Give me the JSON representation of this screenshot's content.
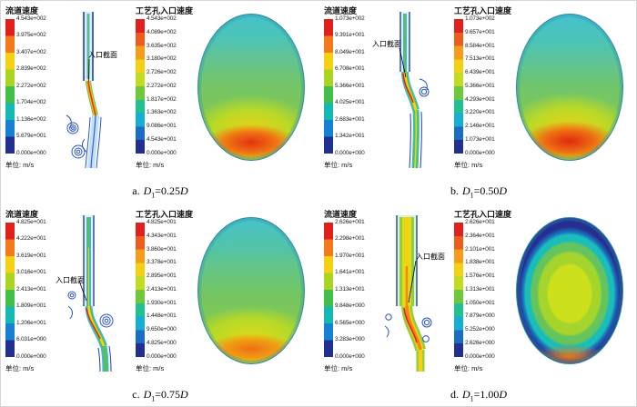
{
  "figure": {
    "annotation_label": "入口截面",
    "unit_label": "单位: m/s",
    "accent_colors": {
      "max_red": "#e11f1c",
      "min_blue": "#232e92",
      "contour_green": "#7ec757",
      "contour_cyan": "#47c2cb"
    }
  },
  "panels": [
    {
      "id": "a",
      "left_legend": {
        "title": "流道速度",
        "unit": "单位: m/s",
        "ticks": [
          "4.543e+002",
          "3.975e+002",
          "3.407e+002",
          "2.839e+002",
          "2.272e+002",
          "1.704e+002",
          "1.136e+002",
          "5.679e+001",
          "0.000e+000"
        ]
      },
      "right_legend": {
        "title": "工艺孔入口速度",
        "unit": "单位: m/s",
        "ticks": [
          "4.543e+002",
          "4.089e+002",
          "3.635e+002",
          "3.180e+002",
          "2.726e+002",
          "2.272e+002",
          "1.817e+002",
          "1.363e+002",
          "9.086e+001",
          "4.543e+001",
          "0.000e+000"
        ]
      },
      "annotation": "入口截面",
      "caption": {
        "index": "a.",
        "symbol": "D",
        "subscript": "1",
        "relation": "=0.25",
        "ref": "D"
      }
    },
    {
      "id": "b",
      "left_legend": {
        "title": "流道速度",
        "unit": "单位: m/s",
        "ticks": [
          "1.073e+002",
          "9.391e+001",
          "8.049e+001",
          "6.708e+001",
          "5.366e+001",
          "4.025e+001",
          "2.683e+001",
          "1.342e+001",
          "0.000e+000"
        ]
      },
      "right_legend": {
        "title": "工艺孔入口速度",
        "unit": "单位: m/s",
        "ticks": [
          "1.073e+002",
          "9.657e+001",
          "8.584e+001",
          "7.513e+001",
          "6.439e+001",
          "5.366e+001",
          "4.293e+001",
          "3.220e+001",
          "2.146e+001",
          "1.073e+001",
          "0.000e+000"
        ]
      },
      "annotation": "入口截面",
      "caption": {
        "index": "b.",
        "symbol": "D",
        "subscript": "1",
        "relation": "=0.50",
        "ref": "D"
      }
    },
    {
      "id": "c",
      "left_legend": {
        "title": "流道速度",
        "unit": "单位: m/s",
        "ticks": [
          "4.825e+001",
          "4.222e+001",
          "3.619e+001",
          "3.016e+001",
          "2.413e+001",
          "1.809e+001",
          "1.206e+001",
          "6.031e+000",
          "0.000e+000"
        ]
      },
      "right_legend": {
        "title": "工艺孔入口速度",
        "unit": "单位: m/s",
        "ticks": [
          "4.825e+001",
          "4.343e+001",
          "3.860e+001",
          "3.378e+001",
          "2.895e+001",
          "2.413e+001",
          "1.930e+001",
          "1.448e+001",
          "9.650e+000",
          "4.825e+000",
          "0.000e+000"
        ]
      },
      "annotation": "入口截面",
      "caption": {
        "index": "c.",
        "symbol": "D",
        "subscript": "1",
        "relation": "=0.75",
        "ref": "D"
      }
    },
    {
      "id": "d",
      "left_legend": {
        "title": "流道速度",
        "unit": "单位: m/s",
        "ticks": [
          "2.626e+001",
          "2.298e+001",
          "1.970e+001",
          "1.641e+001",
          "1.313e+001",
          "9.848e+000",
          "6.565e+000",
          "3.283e+000",
          "0.000e+000"
        ]
      },
      "right_legend": {
        "title": "工艺孔入口速度",
        "unit": "单位: m/s",
        "ticks": [
          "2.626e+001",
          "2.364e+001",
          "2.101e+001",
          "1.838e+001",
          "1.576e+001",
          "1.313e+001",
          "1.050e+001",
          "7.879e+000",
          "5.252e+000",
          "2.626e+000",
          "0.000e+000"
        ]
      },
      "annotation": "入口截面",
      "caption": {
        "index": "d.",
        "symbol": "D",
        "subscript": "1",
        "relation": "=1.00",
        "ref": "D"
      }
    }
  ],
  "chart_data": [
    {
      "type": "heatmap",
      "title": "a. D1=0.25D",
      "annotation": "入口截面",
      "subplots": [
        {
          "name": "流道速度",
          "unit": "m/s",
          "colorbar_range": [
            0,
            454.3
          ],
          "colorbar_ticks": [
            454.3,
            397.5,
            340.7,
            283.9,
            227.2,
            170.4,
            113.6,
            56.79,
            0
          ]
        },
        {
          "name": "工艺孔入口速度",
          "unit": "m/s",
          "colorbar_range": [
            0,
            454.3
          ],
          "colorbar_ticks": [
            454.3,
            408.9,
            363.5,
            318.0,
            272.6,
            227.2,
            181.7,
            136.3,
            90.86,
            45.43,
            0
          ]
        }
      ],
      "legend_position": "left",
      "grid": false
    },
    {
      "type": "heatmap",
      "title": "b. D1=0.50D",
      "annotation": "入口截面",
      "subplots": [
        {
          "name": "流道速度",
          "unit": "m/s",
          "colorbar_range": [
            0,
            107.3
          ],
          "colorbar_ticks": [
            107.3,
            93.91,
            80.49,
            67.08,
            53.66,
            40.25,
            26.83,
            13.42,
            0
          ]
        },
        {
          "name": "工艺孔入口速度",
          "unit": "m/s",
          "colorbar_range": [
            0,
            107.3
          ],
          "colorbar_ticks": [
            107.3,
            96.57,
            85.84,
            75.13,
            64.39,
            53.66,
            42.93,
            32.2,
            21.46,
            10.73,
            0
          ]
        }
      ],
      "legend_position": "left",
      "grid": false
    },
    {
      "type": "heatmap",
      "title": "c. D1=0.75D",
      "annotation": "入口截面",
      "subplots": [
        {
          "name": "流道速度",
          "unit": "m/s",
          "colorbar_range": [
            0,
            48.25
          ],
          "colorbar_ticks": [
            48.25,
            42.22,
            36.19,
            30.16,
            24.13,
            18.09,
            12.06,
            6.031,
            0
          ]
        },
        {
          "name": "工艺孔入口速度",
          "unit": "m/s",
          "colorbar_range": [
            0,
            48.25
          ],
          "colorbar_ticks": [
            48.25,
            43.43,
            38.6,
            33.78,
            28.95,
            24.13,
            19.3,
            14.48,
            9.65,
            4.825,
            0
          ]
        }
      ],
      "legend_position": "left",
      "grid": false
    },
    {
      "type": "heatmap",
      "title": "d. D1=1.00D",
      "annotation": "入口截面",
      "subplots": [
        {
          "name": "流道速度",
          "unit": "m/s",
          "colorbar_range": [
            0,
            26.26
          ],
          "colorbar_ticks": [
            26.26,
            22.98,
            19.7,
            16.41,
            13.13,
            9.848,
            6.565,
            3.283,
            0
          ]
        },
        {
          "name": "工艺孔入口速度",
          "unit": "m/s",
          "colorbar_range": [
            0,
            26.26
          ],
          "colorbar_ticks": [
            26.26,
            23.64,
            21.01,
            18.38,
            15.76,
            13.13,
            10.5,
            7.879,
            5.252,
            2.626,
            0
          ]
        }
      ],
      "legend_position": "left",
      "grid": false
    }
  ]
}
